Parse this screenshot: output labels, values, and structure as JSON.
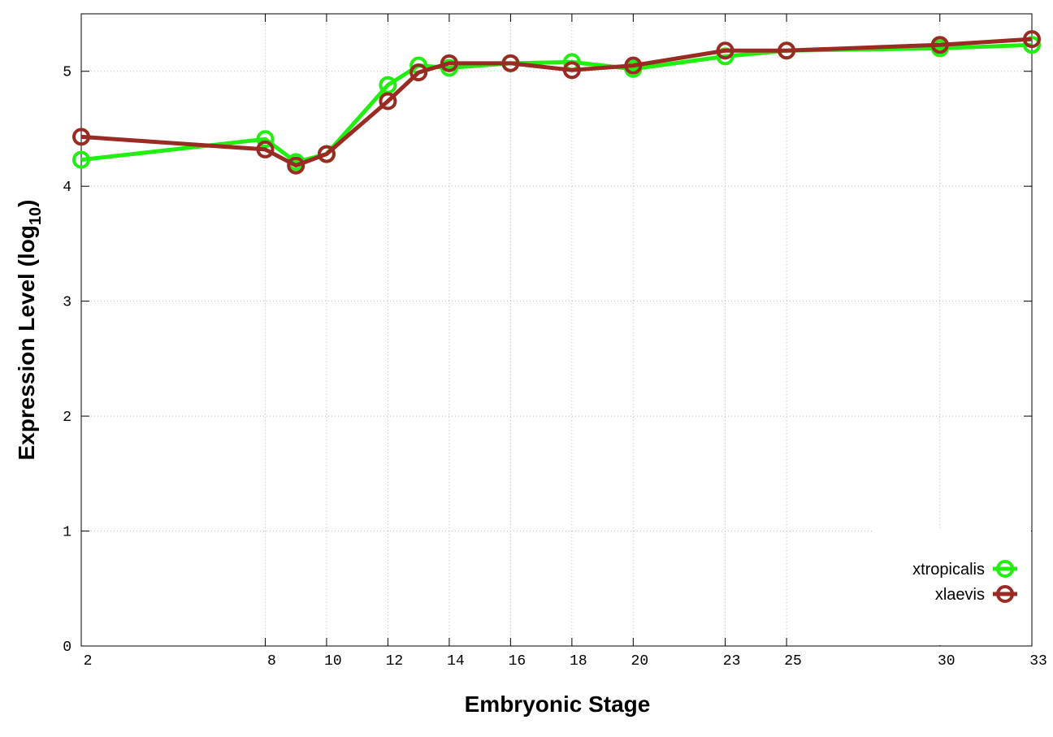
{
  "chart_data": {
    "type": "line",
    "x_label": "Embryonic Stage",
    "y_label": [
      "Expression Level (log",
      "10",
      ")"
    ],
    "x": [
      2,
      8,
      9,
      10,
      12,
      13,
      14,
      16,
      18,
      20,
      23,
      25,
      30,
      33
    ],
    "series": [
      {
        "name": "xtropicalis",
        "color": "#22ee11",
        "values": [
          4.23,
          4.41,
          4.21,
          4.28,
          4.88,
          5.05,
          5.03,
          5.07,
          5.08,
          5.02,
          5.13,
          5.18,
          5.2,
          5.23
        ]
      },
      {
        "name": "xlaevis",
        "color": "#9a2a24",
        "values": [
          4.43,
          4.32,
          4.18,
          4.28,
          4.74,
          4.99,
          5.07,
          5.07,
          5.01,
          5.05,
          5.18,
          5.18,
          5.23,
          5.28
        ]
      }
    ],
    "xlim": [
      2,
      33
    ],
    "xticks": [
      2,
      8,
      10,
      12,
      14,
      16,
      18,
      20,
      23,
      25,
      30,
      33
    ],
    "ylim": [
      0,
      5.5
    ],
    "yticks": [
      0,
      1,
      2,
      3,
      4,
      5
    ],
    "grid": true,
    "legend": "bottom-right"
  }
}
